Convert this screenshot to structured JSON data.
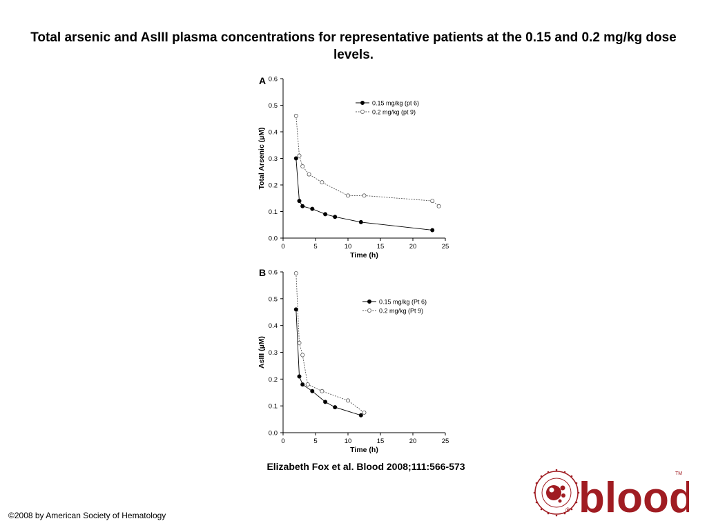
{
  "slide": {
    "title": "Total arsenic and AsIII plasma concentrations for representative patients at the 0.15 and 0.2 mg/kg dose levels.",
    "citation": "Elizabeth Fox et al. Blood 2008;111:566-573",
    "copyright": "©2008 by American Society of Hematology",
    "logo": {
      "wordmark": "blood",
      "trademark": "TM",
      "registered": "®",
      "seal_text": "AMERICAN SOCIETY OF HEMATOLOGY",
      "colors": {
        "primary": "#a01c22"
      }
    }
  },
  "chart_data": [
    {
      "type": "line",
      "panel": "A",
      "xlabel": "Time (h)",
      "ylabel": "Total Arsenic (µM)",
      "xlim": [
        0,
        25
      ],
      "ylim": [
        0,
        0.6
      ],
      "xticks": [
        "0",
        "5",
        "10",
        "15",
        "20",
        "25"
      ],
      "yticks": [
        "0.0",
        "0.1",
        "0.2",
        "0.3",
        "0.4",
        "0.5",
        "0.6"
      ],
      "grid": false,
      "legend_position": "top-right",
      "series": [
        {
          "name": "0.15 mg/kg (pt 6)",
          "marker": "filled-circle",
          "line": "solid",
          "x": [
            2,
            2.5,
            3,
            4.5,
            6.5,
            8,
            12,
            23
          ],
          "y": [
            0.3,
            0.14,
            0.12,
            0.11,
            0.09,
            0.08,
            0.06,
            0.03
          ]
        },
        {
          "name": "0.2 mg/kg (pt 9)",
          "marker": "open-circle",
          "line": "dotted",
          "x": [
            2,
            2.5,
            3,
            4,
            6,
            10,
            12.5,
            23,
            24
          ],
          "y": [
            0.46,
            0.31,
            0.27,
            0.24,
            0.21,
            0.16,
            0.16,
            0.14,
            0.12
          ]
        }
      ]
    },
    {
      "type": "line",
      "panel": "B",
      "xlabel": "Time (h)",
      "ylabel": "AsIII (µM)",
      "xlim": [
        0,
        25
      ],
      "ylim": [
        0,
        0.6
      ],
      "xticks": [
        "0",
        "5",
        "10",
        "15",
        "20",
        "25"
      ],
      "yticks": [
        "0.0",
        "0.1",
        "0.2",
        "0.3",
        "0.4",
        "0.5",
        "0.6"
      ],
      "grid": false,
      "legend_position": "top-right",
      "series": [
        {
          "name": "0.15 mg/kg (Pt 6)",
          "marker": "filled-circle",
          "line": "solid",
          "x": [
            2,
            2.5,
            3,
            4.5,
            6.5,
            8,
            12
          ],
          "y": [
            0.46,
            0.21,
            0.18,
            0.155,
            0.115,
            0.095,
            0.065
          ]
        },
        {
          "name": "0.2 mg/kg (Pt 9)",
          "marker": "open-circle",
          "line": "dotted",
          "x": [
            2,
            2.5,
            3,
            3.8,
            6,
            10,
            12.5
          ],
          "y": [
            0.595,
            0.335,
            0.29,
            0.18,
            0.155,
            0.12,
            0.075
          ]
        }
      ]
    }
  ]
}
